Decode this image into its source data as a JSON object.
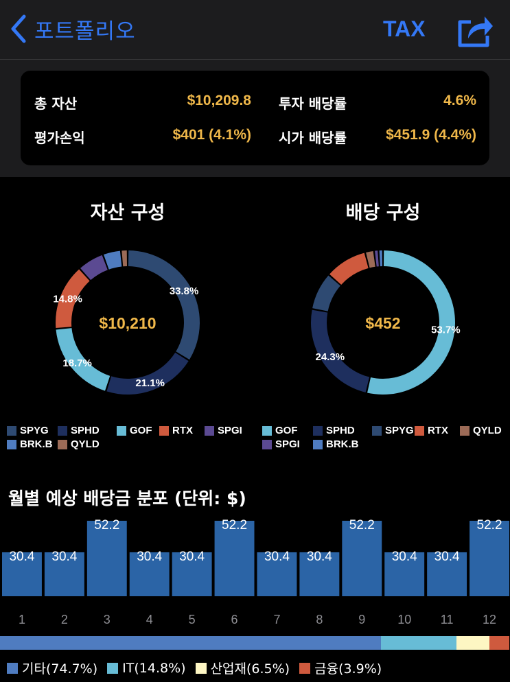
{
  "nav": {
    "back_label": "포트폴리오",
    "tax_label": "TAX",
    "share_icon": "share-icon",
    "accent": "#3478f6"
  },
  "summary": {
    "total_assets_label": "총 자산",
    "total_assets_value": "$10,209.8",
    "invest_yield_label": "투자 배당률",
    "invest_yield_value": "4.6%",
    "pnl_label": "평가손익",
    "pnl_value": "$401 (4.1%)",
    "market_yield_label": "시가 배당률",
    "market_yield_value": "$451.9 (4.4%)",
    "value_color": "#f0b84a"
  },
  "asset_chart": {
    "title": "자산 구성",
    "center_label": "$10,210",
    "legend": [
      {
        "name": "SPYG",
        "color": "#2e4a72"
      },
      {
        "name": "SPHD",
        "color": "#1e2f5e"
      },
      {
        "name": "GOF",
        "color": "#67bcd6"
      },
      {
        "name": "RTX",
        "color": "#cf5a3e"
      },
      {
        "name": "SPGI",
        "color": "#5b4a92"
      },
      {
        "name": "BRK.B",
        "color": "#4f7cc0"
      },
      {
        "name": "QYLD",
        "color": "#9c6b57"
      }
    ]
  },
  "dividend_chart": {
    "title": "배당 구성",
    "center_label": "$452",
    "legend": [
      {
        "name": "GOF",
        "color": "#67bcd6"
      },
      {
        "name": "SPHD",
        "color": "#1e2f5e"
      },
      {
        "name": "SPYG",
        "color": "#2e4a72"
      },
      {
        "name": "RTX",
        "color": "#cf5a3e"
      },
      {
        "name": "QYLD",
        "color": "#9c6b57"
      },
      {
        "name": "SPGI",
        "color": "#5b4a92"
      },
      {
        "name": "BRK.B",
        "color": "#4f7cc0"
      }
    ]
  },
  "monthly": {
    "title": "월별 예상 배당금 분포 (단위: $)"
  },
  "sectors": [
    {
      "name": "기타",
      "label": "기타(74.7%)",
      "value": 74.7,
      "color": "#4f7cc0"
    },
    {
      "name": "IT",
      "label": "IT(14.8%)",
      "value": 14.8,
      "color": "#67bcd6"
    },
    {
      "name": "산업재",
      "label": "산업재(6.5%)",
      "value": 6.5,
      "color": "#fdf6c3"
    },
    {
      "name": "금융",
      "label": "금융(3.9%)",
      "value": 3.9,
      "color": "#cf5a3e"
    }
  ],
  "chart_data": [
    {
      "type": "pie",
      "title": "자산 구성",
      "series": [
        {
          "name": "SPYG",
          "value": 33.8,
          "color": "#2e4a72"
        },
        {
          "name": "SPHD",
          "value": 21.1,
          "color": "#1e2f5e"
        },
        {
          "name": "GOF",
          "value": 18.7,
          "color": "#67bcd6"
        },
        {
          "name": "RTX",
          "value": 14.8,
          "color": "#cf5a3e"
        },
        {
          "name": "SPGI",
          "value": 6.0,
          "color": "#5b4a92"
        },
        {
          "name": "BRK.B",
          "value": 4.1,
          "color": "#4f7cc0"
        },
        {
          "name": "QYLD",
          "value": 1.5,
          "color": "#9c6b57"
        }
      ],
      "labels": {
        "SPYG": "33.8%",
        "SPHD": "21.1%",
        "GOF": "18.7%",
        "RTX": "14.8%"
      }
    },
    {
      "type": "pie",
      "title": "배당 구성",
      "series": [
        {
          "name": "GOF",
          "value": 53.7,
          "color": "#67bcd6"
        },
        {
          "name": "SPHD",
          "value": 24.3,
          "color": "#1e2f5e"
        },
        {
          "name": "SPYG",
          "value": 8.5,
          "color": "#2e4a72"
        },
        {
          "name": "RTX",
          "value": 9.5,
          "color": "#cf5a3e"
        },
        {
          "name": "QYLD",
          "value": 2.0,
          "color": "#9c6b57"
        },
        {
          "name": "SPGI",
          "value": 1.0,
          "color": "#5b4a92"
        },
        {
          "name": "BRK.B",
          "value": 1.0,
          "color": "#4f7cc0"
        }
      ],
      "labels": {
        "GOF": "53.7%",
        "SPHD": "24.3%"
      }
    },
    {
      "type": "bar",
      "title": "월별 예상 배당금 분포 (단위: $)",
      "categories": [
        "1",
        "2",
        "3",
        "4",
        "5",
        "6",
        "7",
        "8",
        "9",
        "10",
        "11",
        "12"
      ],
      "values": [
        30.4,
        30.4,
        52.2,
        30.4,
        30.4,
        52.2,
        30.4,
        30.4,
        52.2,
        30.4,
        30.4,
        52.2
      ],
      "color": "#2b64a6"
    }
  ]
}
